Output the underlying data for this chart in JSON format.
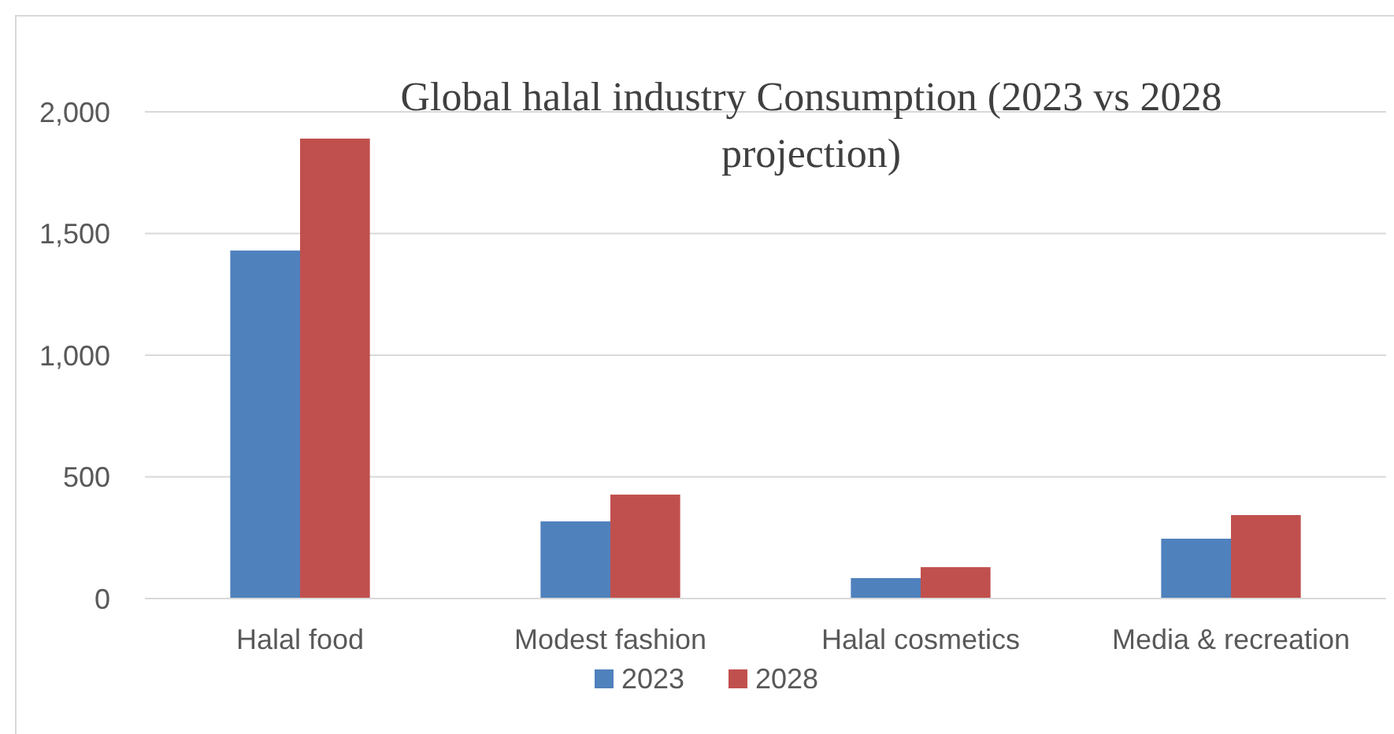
{
  "chart_data": {
    "type": "bar",
    "title": "Global halal industry Consumption (2023 vs 2028 projection)",
    "categories": [
      "Halal food",
      "Modest fashion",
      "Halal cosmetics",
      "Media & recreation"
    ],
    "series": [
      {
        "name": "2023",
        "color": "#4f81bd",
        "values": [
          1430,
          317,
          84,
          246
        ]
      },
      {
        "name": "2028",
        "color": "#c0504d",
        "values": [
          1890,
          427,
          129,
          343
        ]
      }
    ],
    "ylim": [
      0,
      2000
    ],
    "yticks": [
      {
        "value": 0,
        "label": "0"
      },
      {
        "value": 500,
        "label": "500"
      },
      {
        "value": 1000,
        "label": "1,000"
      },
      {
        "value": 1500,
        "label": "1,500"
      },
      {
        "value": 2000,
        "label": "2,000"
      }
    ],
    "grid": "y",
    "legend": "bottom"
  }
}
